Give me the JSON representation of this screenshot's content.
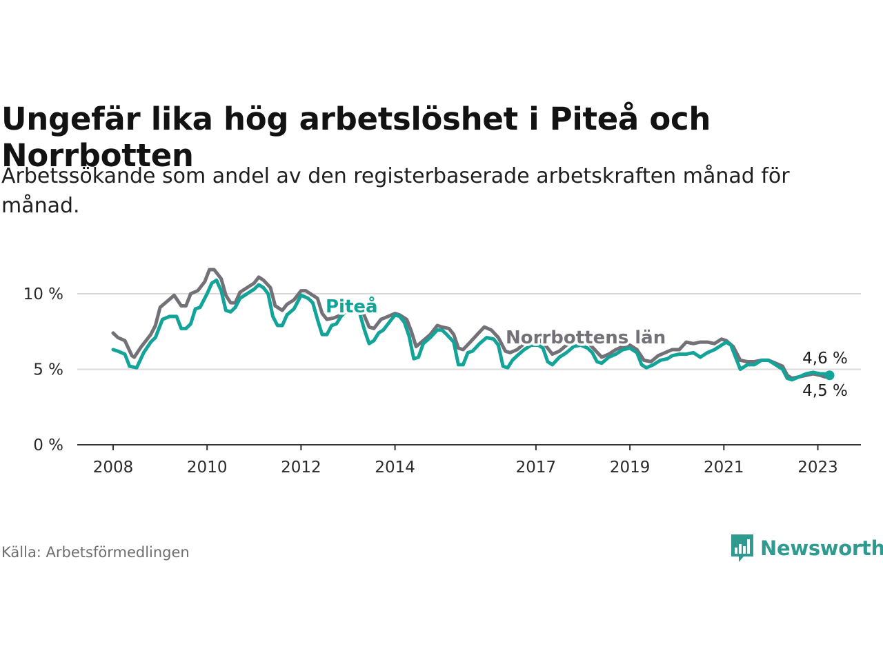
{
  "header": {
    "title": "Ungefär lika hög arbetslöshet i Piteå och Norrbotten",
    "subtitle": "Arbetssökande som andel av den registerbaserade arbetskraften månad för månad."
  },
  "footer": {
    "source": "Källa: Arbetsförmedlingen",
    "brand": "Newsworthy",
    "brand_icon": "bar-chart-speech-bubble-icon"
  },
  "colors": {
    "pitea": "#12a399",
    "norrbotten": "#737078",
    "grid": "#d9d9d9",
    "axis": "#333333",
    "brand": "#2f9a90"
  },
  "chart_data": {
    "type": "line",
    "title": "Ungefär lika hög arbetslöshet i Piteå och Norrbotten",
    "ylabel": "",
    "xlabel": "",
    "ylim": [
      0,
      12
    ],
    "xlim": [
      2008,
      2024
    ],
    "y_ticks": [
      {
        "value": 0,
        "label": "0 %"
      },
      {
        "value": 5,
        "label": "5 %"
      },
      {
        "value": 10,
        "label": "10 %"
      }
    ],
    "x_ticks": [
      {
        "value": 2008,
        "label": "2008"
      },
      {
        "value": 2010,
        "label": "2010"
      },
      {
        "value": 2012,
        "label": "2012"
      },
      {
        "value": 2014,
        "label": "2014"
      },
      {
        "value": 2017,
        "label": "2017"
      },
      {
        "value": 2019,
        "label": "2019"
      },
      {
        "value": 2021,
        "label": "2021"
      },
      {
        "value": 2023,
        "label": "2023"
      }
    ],
    "grid": true,
    "series": [
      {
        "name": "Norrbottens län",
        "color": "#737078",
        "label_at": [
          2016.9,
          7.1
        ],
        "end_label": "4,5 %",
        "points": [
          [
            2008.0,
            7.4
          ],
          [
            2008.1,
            7.1
          ],
          [
            2008.25,
            6.9
          ],
          [
            2008.4,
            5.9
          ],
          [
            2008.45,
            5.8
          ],
          [
            2008.6,
            6.5
          ],
          [
            2008.8,
            7.3
          ],
          [
            2008.9,
            7.9
          ],
          [
            2009.0,
            9.1
          ],
          [
            2009.15,
            9.5
          ],
          [
            2009.3,
            9.9
          ],
          [
            2009.45,
            9.2
          ],
          [
            2009.55,
            9.2
          ],
          [
            2009.65,
            10.0
          ],
          [
            2009.8,
            10.2
          ],
          [
            2009.95,
            10.8
          ],
          [
            2010.05,
            11.6
          ],
          [
            2010.15,
            11.6
          ],
          [
            2010.3,
            11.0
          ],
          [
            2010.4,
            9.9
          ],
          [
            2010.5,
            9.4
          ],
          [
            2010.6,
            9.4
          ],
          [
            2010.7,
            10.1
          ],
          [
            2010.85,
            10.4
          ],
          [
            2011.0,
            10.7
          ],
          [
            2011.1,
            11.1
          ],
          [
            2011.2,
            10.9
          ],
          [
            2011.35,
            10.4
          ],
          [
            2011.45,
            9.2
          ],
          [
            2011.6,
            8.9
          ],
          [
            2011.7,
            9.3
          ],
          [
            2011.85,
            9.6
          ],
          [
            2012.0,
            10.2
          ],
          [
            2012.1,
            10.2
          ],
          [
            2012.25,
            9.9
          ],
          [
            2012.35,
            9.7
          ],
          [
            2012.45,
            8.7
          ],
          [
            2012.55,
            8.3
          ],
          [
            2012.7,
            8.4
          ],
          [
            2012.85,
            8.6
          ],
          [
            2013.0,
            9.0
          ],
          [
            2013.15,
            9.2
          ],
          [
            2013.3,
            8.9
          ],
          [
            2013.45,
            7.8
          ],
          [
            2013.55,
            7.7
          ],
          [
            2013.7,
            8.3
          ],
          [
            2013.85,
            8.5
          ],
          [
            2014.0,
            8.7
          ],
          [
            2014.1,
            8.6
          ],
          [
            2014.25,
            8.3
          ],
          [
            2014.35,
            7.5
          ],
          [
            2014.45,
            6.5
          ],
          [
            2014.6,
            6.9
          ],
          [
            2014.75,
            7.3
          ],
          [
            2014.9,
            7.9
          ],
          [
            2015.0,
            7.8
          ],
          [
            2015.15,
            7.7
          ],
          [
            2015.25,
            7.3
          ],
          [
            2015.35,
            6.4
          ],
          [
            2015.45,
            6.3
          ],
          [
            2015.6,
            6.8
          ],
          [
            2015.75,
            7.3
          ],
          [
            2015.9,
            7.8
          ],
          [
            2016.05,
            7.6
          ],
          [
            2016.2,
            7.1
          ],
          [
            2016.35,
            6.2
          ],
          [
            2016.45,
            6.1
          ],
          [
            2016.6,
            6.3
          ],
          [
            2016.75,
            6.7
          ],
          [
            2016.9,
            7.1
          ],
          [
            2017.05,
            7.0
          ],
          [
            2017.2,
            6.6
          ],
          [
            2017.35,
            6.0
          ],
          [
            2017.5,
            6.2
          ],
          [
            2017.65,
            6.6
          ],
          [
            2017.8,
            6.9
          ],
          [
            2017.95,
            7.0
          ],
          [
            2018.1,
            6.8
          ],
          [
            2018.25,
            6.3
          ],
          [
            2018.4,
            5.8
          ],
          [
            2018.55,
            6.0
          ],
          [
            2018.7,
            6.3
          ],
          [
            2018.85,
            6.5
          ],
          [
            2019.0,
            6.6
          ],
          [
            2019.15,
            6.3
          ],
          [
            2019.3,
            5.6
          ],
          [
            2019.45,
            5.5
          ],
          [
            2019.6,
            5.9
          ],
          [
            2019.75,
            6.1
          ],
          [
            2019.9,
            6.3
          ],
          [
            2020.05,
            6.3
          ],
          [
            2020.2,
            6.8
          ],
          [
            2020.35,
            6.7
          ],
          [
            2020.5,
            6.8
          ],
          [
            2020.65,
            6.8
          ],
          [
            2020.8,
            6.7
          ],
          [
            2020.95,
            7.0
          ],
          [
            2021.05,
            6.9
          ],
          [
            2021.2,
            6.5
          ],
          [
            2021.35,
            5.6
          ],
          [
            2021.5,
            5.5
          ],
          [
            2021.65,
            5.5
          ],
          [
            2021.8,
            5.6
          ],
          [
            2021.95,
            5.6
          ],
          [
            2022.1,
            5.4
          ],
          [
            2022.25,
            5.2
          ],
          [
            2022.35,
            4.6
          ],
          [
            2022.45,
            4.4
          ],
          [
            2022.6,
            4.5
          ],
          [
            2022.75,
            4.6
          ],
          [
            2022.9,
            4.7
          ],
          [
            2023.05,
            4.6
          ],
          [
            2023.15,
            4.5
          ],
          [
            2023.25,
            4.5
          ]
        ]
      },
      {
        "name": "Piteå",
        "color": "#12a399",
        "label_at": [
          2012.55,
          8.9
        ],
        "end_label": "4,6 %",
        "points": [
          [
            2008.0,
            6.3
          ],
          [
            2008.1,
            6.2
          ],
          [
            2008.25,
            6.0
          ],
          [
            2008.35,
            5.2
          ],
          [
            2008.5,
            5.1
          ],
          [
            2008.65,
            6.1
          ],
          [
            2008.8,
            6.8
          ],
          [
            2008.9,
            7.1
          ],
          [
            2009.05,
            8.3
          ],
          [
            2009.2,
            8.5
          ],
          [
            2009.35,
            8.5
          ],
          [
            2009.45,
            7.7
          ],
          [
            2009.55,
            7.7
          ],
          [
            2009.65,
            8.0
          ],
          [
            2009.75,
            9.0
          ],
          [
            2009.85,
            9.1
          ],
          [
            2010.0,
            10.0
          ],
          [
            2010.1,
            10.7
          ],
          [
            2010.2,
            10.9
          ],
          [
            2010.3,
            10.2
          ],
          [
            2010.4,
            8.9
          ],
          [
            2010.5,
            8.8
          ],
          [
            2010.6,
            9.1
          ],
          [
            2010.7,
            9.7
          ],
          [
            2010.85,
            10.0
          ],
          [
            2011.0,
            10.3
          ],
          [
            2011.1,
            10.6
          ],
          [
            2011.2,
            10.4
          ],
          [
            2011.3,
            10.0
          ],
          [
            2011.4,
            8.5
          ],
          [
            2011.5,
            7.9
          ],
          [
            2011.6,
            7.9
          ],
          [
            2011.7,
            8.6
          ],
          [
            2011.85,
            9.0
          ],
          [
            2012.0,
            9.9
          ],
          [
            2012.15,
            9.7
          ],
          [
            2012.25,
            9.4
          ],
          [
            2012.35,
            8.3
          ],
          [
            2012.45,
            7.3
          ],
          [
            2012.55,
            7.3
          ]
        ]
      },
      {
        "name": "Piteå_cont",
        "color": "#12a399",
        "points": [
          [
            2012.55,
            7.3
          ],
          [
            2012.65,
            7.9
          ],
          [
            2012.75,
            8.0
          ],
          [
            2012.85,
            8.5
          ],
          [
            2013.0,
            9.0
          ],
          [
            2013.15,
            9.1
          ],
          [
            2013.25,
            8.7
          ],
          [
            2013.35,
            7.6
          ],
          [
            2013.45,
            6.7
          ],
          [
            2013.55,
            6.9
          ],
          [
            2013.65,
            7.4
          ],
          [
            2013.75,
            7.6
          ],
          [
            2013.9,
            8.2
          ],
          [
            2014.0,
            8.6
          ],
          [
            2014.1,
            8.5
          ],
          [
            2014.2,
            8.1
          ],
          [
            2014.3,
            7.2
          ],
          [
            2014.4,
            5.7
          ],
          [
            2014.5,
            5.8
          ],
          [
            2014.6,
            6.7
          ],
          [
            2014.75,
            7.1
          ],
          [
            2014.9,
            7.6
          ],
          [
            2015.0,
            7.6
          ],
          [
            2015.1,
            7.3
          ],
          [
            2015.25,
            6.8
          ],
          [
            2015.35,
            5.3
          ],
          [
            2015.45,
            5.3
          ],
          [
            2015.55,
            6.1
          ],
          [
            2015.65,
            6.2
          ],
          [
            2015.8,
            6.7
          ],
          [
            2015.95,
            7.1
          ],
          [
            2016.1,
            7.0
          ],
          [
            2016.2,
            6.6
          ],
          [
            2016.3,
            5.2
          ],
          [
            2016.4,
            5.1
          ],
          [
            2016.5,
            5.6
          ],
          [
            2016.6,
            5.9
          ],
          [
            2016.75,
            6.3
          ],
          [
            2016.9,
            6.6
          ],
          [
            2017.05,
            6.6
          ],
          [
            2017.15,
            6.4
          ],
          [
            2017.25,
            5.5
          ],
          [
            2017.35,
            5.3
          ],
          [
            2017.5,
            5.8
          ],
          [
            2017.65,
            6.1
          ],
          [
            2017.8,
            6.5
          ],
          [
            2017.95,
            6.6
          ],
          [
            2018.1,
            6.4
          ],
          [
            2018.2,
            6.1
          ],
          [
            2018.3,
            5.5
          ],
          [
            2018.4,
            5.4
          ],
          [
            2018.55,
            5.8
          ],
          [
            2018.7,
            6.0
          ],
          [
            2018.85,
            6.3
          ],
          [
            2019.0,
            6.4
          ],
          [
            2019.15,
            6.1
          ],
          [
            2019.25,
            5.3
          ],
          [
            2019.35,
            5.1
          ],
          [
            2019.5,
            5.3
          ],
          [
            2019.65,
            5.6
          ],
          [
            2019.8,
            5.7
          ],
          [
            2019.9,
            5.9
          ],
          [
            2020.05,
            6.0
          ],
          [
            2020.2,
            6.0
          ],
          [
            2020.35,
            6.1
          ],
          [
            2020.5,
            5.8
          ],
          [
            2020.65,
            6.1
          ],
          [
            2020.8,
            6.3
          ],
          [
            2020.95,
            6.6
          ],
          [
            2021.05,
            6.8
          ],
          [
            2021.15,
            6.6
          ],
          [
            2021.25,
            5.8
          ],
          [
            2021.35,
            5.0
          ],
          [
            2021.5,
            5.3
          ],
          [
            2021.65,
            5.3
          ],
          [
            2021.8,
            5.6
          ],
          [
            2021.95,
            5.6
          ],
          [
            2022.1,
            5.3
          ],
          [
            2022.25,
            5.0
          ],
          [
            2022.35,
            4.4
          ],
          [
            2022.45,
            4.3
          ],
          [
            2022.6,
            4.5
          ],
          [
            2022.75,
            4.7
          ],
          [
            2022.9,
            4.8
          ],
          [
            2023.05,
            4.7
          ],
          [
            2023.15,
            4.7
          ],
          [
            2023.25,
            4.6
          ]
        ]
      }
    ]
  }
}
